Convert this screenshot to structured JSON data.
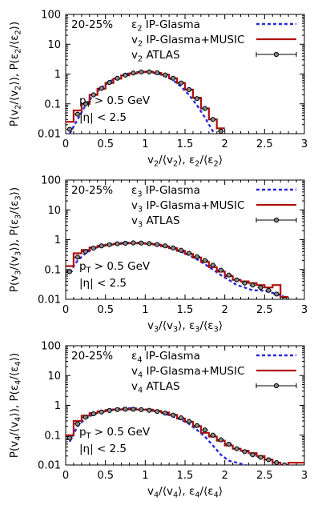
{
  "figure": {
    "colors": {
      "epsilon": "#2a2ae0",
      "music": "#b01010",
      "atlas": "#000000"
    }
  },
  "chart_data": [
    {
      "type": "line",
      "panel": "v2",
      "centrality": "20-25%",
      "annotation_pt": "p_T > 0.5 GeV",
      "annotation_eta": "|η| < 2.5",
      "xlabel": "v_2/⟨v_2⟩, ε_2/⟨ε_2⟩",
      "ylabel": "P(v_2/⟨v_2⟩), P(ε_2/⟨ε_2⟩)",
      "xlim": [
        0,
        3
      ],
      "ylim": [
        0.01,
        100
      ],
      "yscale": "log",
      "xticks": [
        "0",
        "0.5",
        "1",
        "1.5",
        "2",
        "2.5",
        "3"
      ],
      "yticks": [
        "0.01",
        "0.1",
        "1",
        "10",
        "100"
      ],
      "legend": [
        "ε_2 IP-Glasma",
        "v_2 IP-Glasma+MUSIC",
        "v_2 ATLAS"
      ],
      "series": [
        {
          "name": "ε_2 IP-Glasma",
          "style": "dashed",
          "x": [
            0.05,
            0.15,
            0.25,
            0.35,
            0.45,
            0.55,
            0.65,
            0.75,
            0.85,
            0.95,
            1.05,
            1.15,
            1.25,
            1.35,
            1.45,
            1.55,
            1.65,
            1.75,
            1.85,
            1.95
          ],
          "y": [
            0.01,
            0.03,
            0.09,
            0.2,
            0.35,
            0.55,
            0.78,
            0.98,
            1.12,
            1.18,
            1.15,
            1.05,
            0.85,
            0.62,
            0.38,
            0.2,
            0.09,
            0.035,
            0.012,
            0.004
          ]
        },
        {
          "name": "v_2 IP-Glasma+MUSIC",
          "style": "step",
          "edges": [
            0.0,
            0.1,
            0.2,
            0.3,
            0.4,
            0.5,
            0.6,
            0.7,
            0.8,
            0.9,
            1.0,
            1.1,
            1.2,
            1.3,
            1.4,
            1.5,
            1.6,
            1.7,
            1.8,
            1.9,
            2.0
          ],
          "values": [
            0.025,
            0.06,
            0.1,
            0.2,
            0.32,
            0.5,
            0.7,
            0.9,
            1.05,
            1.15,
            1.2,
            1.1,
            0.95,
            0.72,
            0.5,
            0.3,
            0.16,
            0.07,
            0.03,
            0.015
          ]
        },
        {
          "name": "v_2 ATLAS",
          "style": "points",
          "x": [
            0.05,
            0.15,
            0.25,
            0.35,
            0.45,
            0.55,
            0.65,
            0.75,
            0.85,
            0.95,
            1.05,
            1.15,
            1.25,
            1.35,
            1.45,
            1.55,
            1.65,
            1.75,
            1.85,
            1.95
          ],
          "y": [
            0.014,
            0.045,
            0.1,
            0.2,
            0.33,
            0.52,
            0.72,
            0.92,
            1.08,
            1.17,
            1.18,
            1.1,
            0.93,
            0.72,
            0.5,
            0.3,
            0.15,
            0.07,
            0.03,
            0.012
          ]
        }
      ]
    },
    {
      "type": "line",
      "panel": "v3",
      "centrality": "20-25%",
      "annotation_pt": "p_T > 0.5 GeV",
      "annotation_eta": "|η| < 2.5",
      "xlabel": "v_3/⟨v_3⟩, ε_3/⟨ε_3⟩",
      "ylabel": "P(v_3/⟨v_3⟩), P(ε_3/⟨ε_3⟩)",
      "xlim": [
        0,
        3
      ],
      "ylim": [
        0.01,
        100
      ],
      "yscale": "log",
      "xticks": [
        "0",
        "0.5",
        "1",
        "1.5",
        "2",
        "2.5",
        "3"
      ],
      "yticks": [
        "0.01",
        "0.1",
        "1",
        "10",
        "100"
      ],
      "legend": [
        "ε_3 IP-Glasma",
        "v_3 IP-Glasma+MUSIC",
        "v_3 ATLAS"
      ],
      "series": [
        {
          "name": "ε_3 IP-Glasma",
          "style": "dashed",
          "x": [
            0.05,
            0.15,
            0.25,
            0.35,
            0.45,
            0.55,
            0.65,
            0.75,
            0.85,
            0.95,
            1.05,
            1.15,
            1.25,
            1.35,
            1.45,
            1.55,
            1.65,
            1.75,
            1.85,
            1.95,
            2.05,
            2.15,
            2.25,
            2.35,
            2.45,
            2.55,
            2.65,
            2.75
          ],
          "y": [
            0.08,
            0.2,
            0.35,
            0.5,
            0.62,
            0.7,
            0.76,
            0.79,
            0.8,
            0.78,
            0.74,
            0.68,
            0.6,
            0.5,
            0.4,
            0.3,
            0.22,
            0.15,
            0.1,
            0.065,
            0.045,
            0.03,
            0.025,
            0.02,
            0.02,
            0.018,
            0.015,
            0.012
          ]
        },
        {
          "name": "v_3 IP-Glasma+MUSIC",
          "style": "step",
          "edges": [
            0.0,
            0.1,
            0.2,
            0.3,
            0.4,
            0.5,
            0.6,
            0.7,
            0.8,
            0.9,
            1.0,
            1.1,
            1.2,
            1.3,
            1.4,
            1.5,
            1.6,
            1.7,
            1.8,
            1.9,
            2.0,
            2.1,
            2.2,
            2.3,
            2.4,
            2.5,
            2.6,
            2.7,
            2.8
          ],
          "values": [
            0.13,
            0.35,
            0.45,
            0.55,
            0.62,
            0.68,
            0.72,
            0.75,
            0.77,
            0.75,
            0.73,
            0.68,
            0.6,
            0.52,
            0.42,
            0.33,
            0.25,
            0.18,
            0.12,
            0.085,
            0.06,
            0.045,
            0.04,
            0.035,
            0.03,
            0.025,
            0.03,
            0.012
          ]
        },
        {
          "name": "v_3 ATLAS",
          "style": "points",
          "x": [
            0.05,
            0.15,
            0.25,
            0.35,
            0.45,
            0.55,
            0.65,
            0.75,
            0.85,
            0.95,
            1.05,
            1.15,
            1.25,
            1.35,
            1.45,
            1.55,
            1.65,
            1.75,
            1.85,
            1.95,
            2.05,
            2.15,
            2.25,
            2.35,
            2.45,
            2.55,
            2.65,
            2.75
          ],
          "y": [
            0.085,
            0.26,
            0.4,
            0.52,
            0.62,
            0.68,
            0.73,
            0.76,
            0.78,
            0.77,
            0.74,
            0.69,
            0.62,
            0.53,
            0.44,
            0.35,
            0.27,
            0.2,
            0.14,
            0.095,
            0.065,
            0.045,
            0.035,
            0.03,
            0.025,
            0.02,
            0.015,
            0.01
          ]
        }
      ]
    },
    {
      "type": "line",
      "panel": "v4",
      "centrality": "20-25%",
      "annotation_pt": "p_T > 0.5 GeV",
      "annotation_eta": "|η| < 2.5",
      "xlabel": "v_4/⟨v_4⟩, ε_4/⟨ε_4⟩",
      "ylabel": "P(v_4/⟨v_4⟩), P(ε_4/⟨ε_4⟩)",
      "xlim": [
        0,
        3
      ],
      "ylim": [
        0.01,
        100
      ],
      "yscale": "log",
      "xticks": [
        "0",
        "0.5",
        "1",
        "1.5",
        "2",
        "2.5",
        "3"
      ],
      "yticks": [
        "0.01",
        "0.1",
        "1",
        "10",
        "100"
      ],
      "legend": [
        "ε_4 IP-Glasma",
        "v_4 IP-Glasma+MUSIC",
        "v_4 ATLAS"
      ],
      "series": [
        {
          "name": "ε_4 IP-Glasma",
          "style": "dashed",
          "x": [
            0.05,
            0.15,
            0.25,
            0.35,
            0.45,
            0.55,
            0.65,
            0.75,
            0.85,
            0.95,
            1.05,
            1.15,
            1.25,
            1.35,
            1.45,
            1.55,
            1.65,
            1.75,
            1.85,
            1.95,
            2.05,
            2.15,
            2.25,
            2.35,
            2.45
          ],
          "y": [
            0.06,
            0.2,
            0.36,
            0.5,
            0.62,
            0.7,
            0.76,
            0.8,
            0.8,
            0.76,
            0.7,
            0.62,
            0.52,
            0.42,
            0.33,
            0.24,
            0.15,
            0.09,
            0.045,
            0.022,
            0.014,
            0.012,
            0.01,
            0.009,
            0.008
          ]
        },
        {
          "name": "v_4 IP-Glasma+MUSIC",
          "style": "step",
          "edges": [
            0.0,
            0.1,
            0.2,
            0.3,
            0.4,
            0.5,
            0.6,
            0.7,
            0.8,
            0.9,
            1.0,
            1.1,
            1.2,
            1.3,
            1.4,
            1.5,
            1.6,
            1.7,
            1.8,
            1.9,
            2.0,
            2.1,
            2.2,
            2.3,
            2.4,
            2.5,
            2.6,
            2.7,
            2.8,
            2.9,
            3.0
          ],
          "values": [
            0.1,
            0.3,
            0.45,
            0.55,
            0.63,
            0.7,
            0.72,
            0.74,
            0.73,
            0.72,
            0.72,
            0.65,
            0.58,
            0.48,
            0.36,
            0.28,
            0.2,
            0.12,
            0.09,
            0.065,
            0.045,
            0.035,
            0.03,
            0.025,
            0.02,
            0.015,
            0.012,
            0.01,
            0.012,
            0.012
          ]
        },
        {
          "name": "v_4 ATLAS",
          "style": "points",
          "x": [
            0.05,
            0.15,
            0.25,
            0.35,
            0.45,
            0.55,
            0.65,
            0.75,
            0.85,
            0.95,
            1.05,
            1.15,
            1.25,
            1.35,
            1.45,
            1.55,
            1.65,
            1.75,
            1.85,
            1.95,
            2.05,
            2.15,
            2.25,
            2.35,
            2.45,
            2.55,
            2.65,
            2.75
          ],
          "y": [
            0.08,
            0.24,
            0.4,
            0.52,
            0.6,
            0.67,
            0.72,
            0.74,
            0.74,
            0.72,
            0.68,
            0.62,
            0.55,
            0.47,
            0.38,
            0.29,
            0.21,
            0.15,
            0.1,
            0.07,
            0.05,
            0.035,
            0.028,
            0.022,
            0.018,
            0.015,
            0.012,
            0.01
          ]
        }
      ]
    }
  ]
}
